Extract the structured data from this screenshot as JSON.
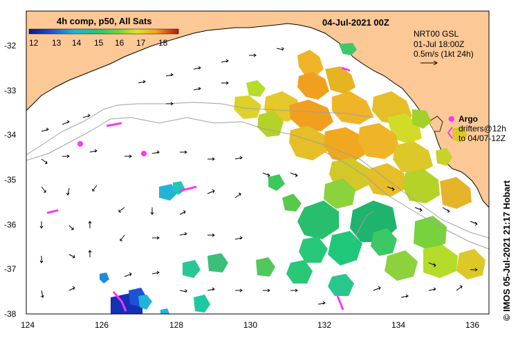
{
  "map": {
    "title": "04-Jul-2021 00Z",
    "colorbar": {
      "title": "4h comp, p50, All Sats",
      "ticks": [
        "12",
        "13",
        "14",
        "15",
        "16",
        "17",
        "18"
      ]
    },
    "velocity_legend": {
      "line1": "NRT00 GSL",
      "line2": "01-Jul 18:00Z",
      "line3": "0.5m/s (1kt 24h)"
    },
    "argo_legend": {
      "label": "Argo",
      "line1": "drifters@12h",
      "line2": "to 04/07-12Z"
    },
    "credit": "© IMOS 05-Jul-2021 21:17 Hobart",
    "x_ticks": [
      "124",
      "126",
      "128",
      "130",
      "132",
      "134",
      "136"
    ],
    "y_ticks": [
      "-32",
      "-33",
      "-34",
      "-35",
      "-36",
      "-37",
      "-38"
    ],
    "colors": {
      "land": "#fbc896",
      "ocean": "#ffffff",
      "argo": "#ff33ff",
      "track": "#a0a0a0"
    }
  }
}
